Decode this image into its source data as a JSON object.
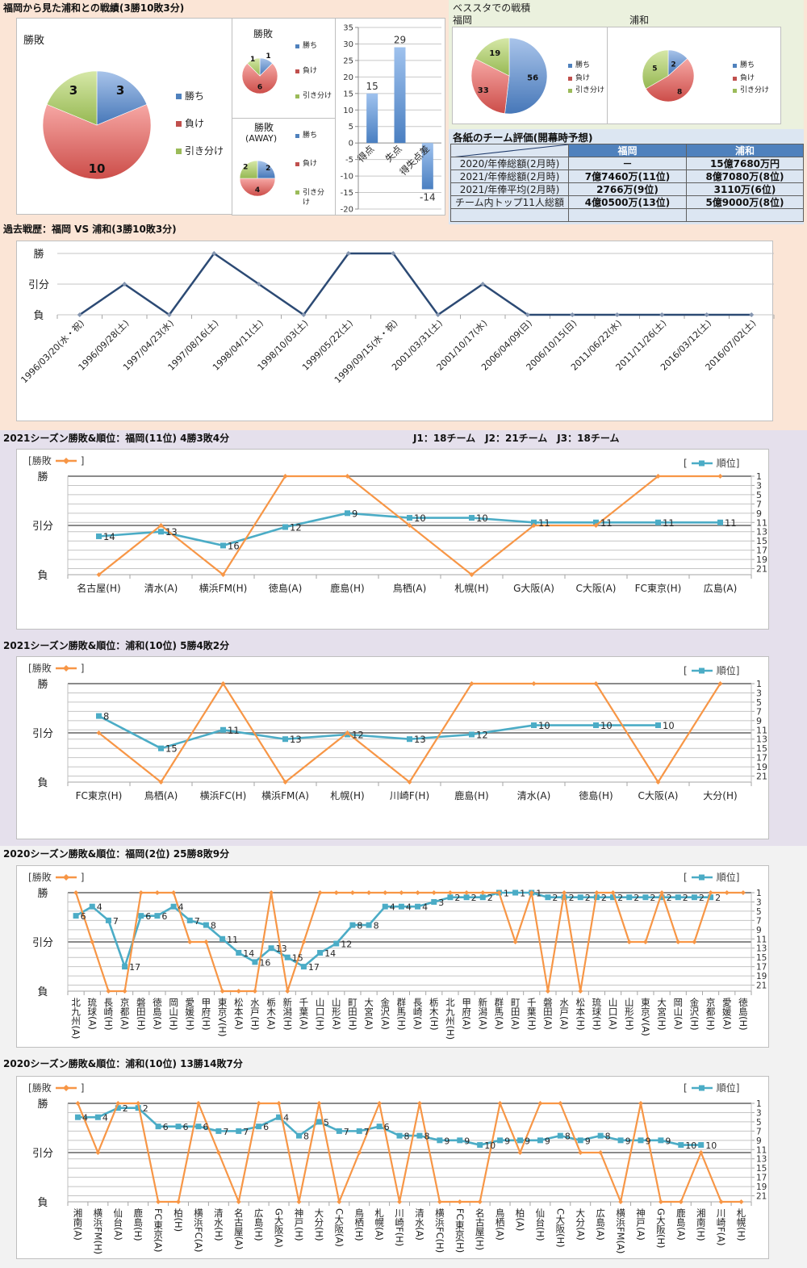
{
  "titles": {
    "overview": "福岡から見た浦和との戦績(3勝10敗3分)",
    "beststa": "ベススタでの戦積",
    "beststa_fukuoka": "福岡",
    "beststa_urawa": "浦和",
    "evaluation": "各紙のチーム評価(開幕時予想)",
    "history": "過去戦歴：福岡 VS 浦和(3勝10敗3分)",
    "fukuoka_2021": "2021シーズン勝敗&順位：福岡(11位) 4勝3敗4分",
    "league_info": "J1：18チーム　J2：21チーム　J3：18チーム",
    "urawa_2021": "2021シーズン勝敗&順位：浦和(10位) 5勝4敗2分",
    "fukuoka_2020": "2020シーズン勝敗&順位：福岡(2位) 25勝8敗9分",
    "urawa_2020": "2020シーズン勝敗&順位：浦和(10位) 13勝14敗7分"
  },
  "combo_legend": {
    "open": "[",
    "close": "]",
    "result": "勝敗",
    "rank": "順位"
  },
  "table": {
    "headers": [
      "",
      "福岡",
      "浦和"
    ],
    "rows": [
      [
        "2020/年俸総額(2月時)",
        "－",
        "15億7680万円"
      ],
      [
        "2021/年俸総額(2月時)",
        "7億7460万(11位)",
        "8億7080万(8位)"
      ],
      [
        "2021/年俸平均(2月時)",
        "2766万(9位)",
        "3110万(6位)"
      ],
      [
        "チーム内トップ11人総額",
        "4億0500万(13位)",
        "5億9000万(8位)"
      ],
      [
        "",
        "",
        ""
      ]
    ]
  },
  "colors": {
    "win": "#4f81bd",
    "loss": "#c0504d",
    "draw": "#9bbb59",
    "result_line": "#f79646",
    "rank_line": "#4bacc6",
    "history_line": "#2c4a74",
    "table_header": "#4f81bd",
    "bg_overview": "#fbe5d6",
    "bg_beststa": "#ebf1de",
    "bg_evaluation": "#dce6f2",
    "bg_2021": "#e5e0ec",
    "bg_2020": "#f2f2f2"
  },
  "chart_data": [
    {
      "id": "overall-pie",
      "type": "pie",
      "title": "勝敗",
      "labels": [
        "勝ち",
        "負け",
        "引き分け"
      ],
      "values": [
        3,
        10,
        3
      ]
    },
    {
      "id": "home-pie",
      "type": "pie",
      "title": "勝敗",
      "labels": [
        "勝ち",
        "負け",
        "引き分け"
      ],
      "values": [
        1,
        6,
        1
      ]
    },
    {
      "id": "away-pie",
      "type": "pie",
      "title": "勝敗",
      "subtitle": "(AWAY)",
      "labels": [
        "勝ち",
        "負け",
        "引き分け"
      ],
      "values": [
        2,
        4,
        2
      ]
    },
    {
      "id": "goals-bar",
      "type": "bar",
      "categories": [
        "得点",
        "失点",
        "得失点差"
      ],
      "values": [
        15,
        29,
        -14
      ],
      "ylim": [
        -20,
        35
      ],
      "ytick_step": 5
    },
    {
      "id": "beststa-fukuoka-pie",
      "type": "pie",
      "title": "福岡",
      "labels": [
        "勝ち",
        "負け",
        "引き分け"
      ],
      "values": [
        56,
        33,
        19
      ]
    },
    {
      "id": "beststa-urawa-pie",
      "type": "pie",
      "title": "浦和",
      "labels": [
        "勝ち",
        "負け",
        "引き分け"
      ],
      "values": [
        2,
        8,
        5
      ]
    },
    {
      "id": "history-line",
      "type": "line",
      "title": "過去戦歴：福岡 VS 浦和(3勝10敗3分)",
      "categories": [
        "1996/03/20(水・祝)",
        "1996/09/28(土)",
        "1997/04/23(水)",
        "1997/08/16(土)",
        "1998/04/11(土)",
        "1998/10/03(土)",
        "1999/05/22(土)",
        "1999/09/15(水・祝)",
        "2001/03/31(土)",
        "2001/10/17(水)",
        "2006/04/09(日)",
        "2006/10/15(日)",
        "2011/06/22(水)",
        "2011/11/26(土)",
        "2016/03/12(土)",
        "2016/07/02(土)"
      ],
      "values": [
        0,
        1,
        0,
        2,
        1,
        0,
        2,
        2,
        0,
        1,
        0,
        0,
        0,
        0,
        0,
        0
      ],
      "y_labels": [
        "負",
        "引分",
        "勝"
      ],
      "ylim": [
        0,
        2
      ],
      "grid": true
    },
    {
      "id": "fukuoka-2021",
      "type": "line",
      "title": "2021シーズン勝敗&順位：福岡(11位) 4勝3敗4分",
      "categories": [
        "名古屋(H)",
        "清水(A)",
        "横浜FM(H)",
        "徳島(A)",
        "鹿島(H)",
        "鳥栖(A)",
        "札幌(H)",
        "G大阪(A)",
        "C大阪(A)",
        "FC東京(H)",
        "広島(A)"
      ],
      "series": [
        {
          "name": "勝敗",
          "axis": "left",
          "values": [
            0,
            1,
            0,
            2,
            2,
            1,
            0,
            1,
            1,
            2,
            2
          ]
        },
        {
          "name": "順位",
          "axis": "right",
          "values": [
            14,
            13,
            16,
            12,
            9,
            10,
            10,
            11,
            11,
            11,
            11
          ]
        }
      ],
      "y_left_labels": [
        "負",
        "引分",
        "勝"
      ],
      "y_right_ticks": [
        1,
        3,
        5,
        7,
        9,
        11,
        13,
        15,
        17,
        19,
        21
      ],
      "y_right_range": [
        1,
        22.3
      ],
      "y_right_reversed": true,
      "legend": "top-left (勝敗), top-right (順位)"
    },
    {
      "id": "urawa-2021",
      "type": "line",
      "title": "2021シーズン勝敗&順位：浦和(10位) 5勝4敗2分",
      "categories": [
        "FC東京(H)",
        "鳥栖(A)",
        "横浜FC(H)",
        "横浜FM(A)",
        "札幌(H)",
        "川崎F(H)",
        "鹿島(H)",
        "清水(A)",
        "徳島(H)",
        "C大阪(A)",
        "大分(H)"
      ],
      "series": [
        {
          "name": "勝敗",
          "axis": "left",
          "values": [
            1,
            0,
            2,
            0,
            1,
            0,
            2,
            2,
            2,
            0,
            2
          ]
        },
        {
          "name": "順位",
          "axis": "right",
          "values": [
            8,
            15,
            11,
            13,
            12,
            13,
            12,
            10,
            10,
            10,
            null
          ]
        }
      ],
      "y_left_labels": [
        "負",
        "引分",
        "勝"
      ],
      "y_right_ticks": [
        1,
        3,
        5,
        7,
        9,
        11,
        13,
        15,
        17,
        19,
        21
      ],
      "y_right_range": [
        1,
        22.3
      ],
      "y_right_reversed": true,
      "legend": "top-left (勝敗), top-right (順位)"
    },
    {
      "id": "fukuoka-2020",
      "type": "line",
      "title": "2020シーズン勝敗&順位：福岡(2位) 25勝8敗9分",
      "categories": [
        "北九州(A)",
        "琉球(A)",
        "長崎(H)",
        "京都(A)",
        "磐田(H)",
        "徳島(A)",
        "岡山(H)",
        "愛媛(H)",
        "甲府(H)",
        "東京V(H)",
        "松本(A)",
        "水戸(H)",
        "栃木(A)",
        "新潟(H)",
        "千葉(A)",
        "山口(H)",
        "山形(A)",
        "町田(H)",
        "大宮(A)",
        "金沢(A)",
        "群馬(H)",
        "長崎(A)",
        "栃木(H)",
        "北九州(H)",
        "甲府(A)",
        "新潟(A)",
        "群馬(A)",
        "町田(A)",
        "千葉(H)",
        "磐田(A)",
        "水戸(A)",
        "松本(H)",
        "琉球(H)",
        "山口(A)",
        "山形(H)",
        "東京V(A)",
        "大宮(H)",
        "岡山(A)",
        "金沢(H)",
        "京都(H)",
        "愛媛(A)",
        "徳島(H)"
      ],
      "series": [
        {
          "name": "勝敗",
          "axis": "left",
          "values": [
            2,
            1,
            0,
            0,
            2,
            2,
            2,
            1,
            1,
            0,
            0,
            0,
            2,
            0,
            1,
            2,
            2,
            2,
            2,
            2,
            2,
            2,
            2,
            2,
            2,
            2,
            2,
            1,
            2,
            0,
            2,
            0,
            2,
            2,
            1,
            1,
            2,
            1,
            1,
            2,
            2,
            2
          ]
        },
        {
          "name": "順位",
          "axis": "right",
          "values": [
            6,
            4,
            7,
            17,
            6,
            6,
            4,
            7,
            8,
            11,
            14,
            16,
            13,
            15,
            17,
            14,
            12,
            8,
            8,
            4,
            4,
            4,
            3,
            2,
            2,
            2,
            1,
            1,
            1,
            2,
            2,
            2,
            2,
            2,
            2,
            2,
            2,
            2,
            2,
            2,
            null,
            null
          ]
        }
      ],
      "y_left_labels": [
        "負",
        "引分",
        "勝"
      ],
      "y_right_ticks": [
        1,
        3,
        5,
        7,
        9,
        11,
        13,
        15,
        17,
        19,
        21
      ],
      "y_right_range": [
        1,
        22.3
      ],
      "y_right_reversed": true,
      "legend": "top-left (勝敗), top-right (順位)"
    },
    {
      "id": "urawa-2020",
      "type": "line",
      "title": "2020シーズン勝敗&順位：浦和(10位) 13勝14敗7分",
      "categories": [
        "湘南(A)",
        "横浜FM(H)",
        "仙台(A)",
        "鹿島(H)",
        "FC東京(A)",
        "柏(H)",
        "横浜FC(A)",
        "清水(H)",
        "名古屋(A)",
        "広島(H)",
        "G大阪(A)",
        "神戸(H)",
        "大分(H)",
        "C大阪(A)",
        "鳥栖(H)",
        "札幌(A)",
        "川崎F(H)",
        "清水(A)",
        "横浜FC(H)",
        "FC東京(H)",
        "名古屋(H)",
        "鳥栖(A)",
        "柏(A)",
        "仙台(H)",
        "C大阪(H)",
        "大分(A)",
        "広島(A)",
        "横浜FM(A)",
        "神戸(A)",
        "G大阪(H)",
        "鹿島(A)",
        "湘南(H)",
        "川崎F(A)",
        "札幌(H)"
      ],
      "series": [
        {
          "name": "勝敗",
          "axis": "left",
          "values": [
            2,
            1,
            2,
            2,
            0,
            0,
            2,
            1,
            0,
            2,
            2,
            0,
            2,
            0,
            1,
            2,
            0,
            2,
            0,
            0,
            0,
            2,
            1,
            2,
            2,
            1,
            1,
            0,
            2,
            0,
            0,
            1,
            0,
            0
          ]
        },
        {
          "name": "順位",
          "axis": "right",
          "values": [
            4,
            4,
            2,
            2,
            6,
            6,
            6,
            7,
            7,
            6,
            4,
            8,
            5,
            7,
            7,
            6,
            8,
            8,
            9,
            9,
            10,
            9,
            9,
            9,
            8,
            9,
            8,
            9,
            9,
            9,
            10,
            10,
            null,
            null
          ]
        }
      ],
      "y_left_labels": [
        "負",
        "引分",
        "勝"
      ],
      "y_right_ticks": [
        1,
        3,
        5,
        7,
        9,
        11,
        13,
        15,
        17,
        19,
        21
      ],
      "y_right_range": [
        1,
        22.3
      ],
      "y_right_reversed": true,
      "legend": "top-left (勝敗), top-right (順位)"
    }
  ]
}
